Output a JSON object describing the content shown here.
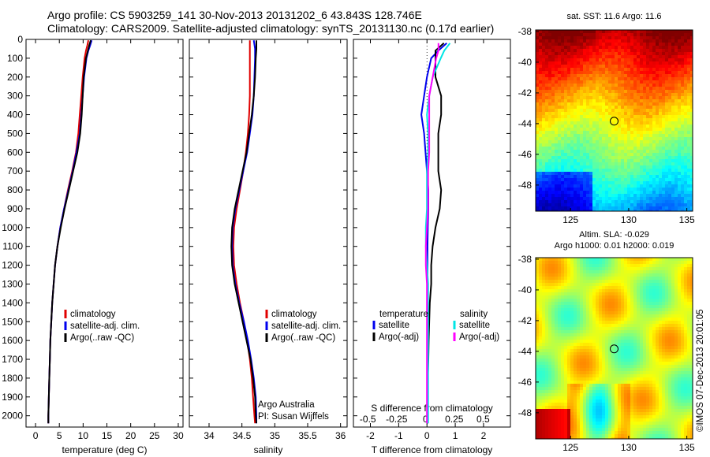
{
  "titles": {
    "line1": "Argo profile: CS 5903259_141 30-Nov-2013 20131202_6 43.843S 128.746E",
    "line2": "Climatology: CARS2009. Satellite-adjusted climatology: synTS_20131130.nc (0.17d earlier)"
  },
  "colors": {
    "climatology": "#e00000",
    "satellite": "#0000ee",
    "argo": "#000000",
    "sal_satellite": "#00e5e5",
    "sal_argo": "#ff00ff"
  },
  "chart_data": [
    {
      "type": "line",
      "id": "temperature",
      "xlabel": "temperature (deg C)",
      "ylabel": "",
      "xlim": [
        -2,
        31
      ],
      "ylim": [
        0,
        2060
      ],
      "y_inverted": true,
      "xticks": [
        "0",
        "5",
        "10",
        "15",
        "20",
        "25",
        "30"
      ],
      "yticks": [
        "0",
        "100",
        "200",
        "300",
        "400",
        "500",
        "600",
        "700",
        "800",
        "900",
        "1000",
        "1100",
        "1200",
        "1300",
        "1400",
        "1500",
        "1600",
        "1700",
        "1800",
        "1900",
        "2000"
      ],
      "legend": [
        "climatology",
        "satellite-adj. clim.",
        "Argo(..raw -QC)"
      ],
      "series": [
        {
          "name": "climatology",
          "y": [
            5,
            30,
            60,
            100,
            200,
            300,
            400,
            500,
            600,
            700,
            800,
            900,
            1000,
            1100,
            1200,
            1300,
            1400,
            1500,
            1600,
            1700,
            1800,
            1900,
            2000,
            2040
          ],
          "x": [
            11.1,
            10.9,
            10.6,
            10.3,
            9.9,
            9.6,
            9.3,
            9.0,
            8.5,
            7.7,
            6.8,
            6.0,
            5.2,
            4.6,
            4.1,
            3.8,
            3.5,
            3.3,
            3.1,
            3.0,
            2.9,
            2.8,
            2.7,
            2.7
          ]
        },
        {
          "name": "satellite-adj. clim.",
          "y": [
            5,
            30,
            60,
            100,
            200,
            300,
            400,
            500,
            600,
            700,
            800,
            900,
            1000,
            1100,
            1200,
            1300,
            1400,
            1500,
            1600,
            1700,
            1800,
            1900,
            2000,
            2040
          ],
          "x": [
            11.8,
            11.5,
            11.1,
            10.7,
            10.2,
            9.9,
            9.6,
            9.3,
            8.6,
            7.8,
            6.9,
            6.0,
            5.2,
            4.6,
            4.1,
            3.8,
            3.5,
            3.3,
            3.1,
            3.0,
            2.9,
            2.8,
            2.7,
            2.7
          ]
        },
        {
          "name": "Argo(..raw -QC)",
          "y": [
            5,
            30,
            60,
            100,
            200,
            300,
            400,
            500,
            600,
            700,
            800,
            900,
            1000,
            1100,
            1200,
            1300,
            1400,
            1500,
            1600,
            1700,
            1800,
            1900,
            2000,
            2040
          ],
          "x": [
            11.6,
            11.3,
            11.0,
            10.6,
            10.1,
            9.9,
            9.7,
            9.4,
            8.8,
            7.9,
            7.0,
            6.1,
            5.3,
            4.6,
            4.1,
            3.8,
            3.5,
            3.3,
            3.1,
            3.0,
            2.9,
            2.8,
            2.7,
            2.7
          ]
        }
      ]
    },
    {
      "type": "line",
      "id": "salinity",
      "xlabel": "salinity",
      "ylabel": "",
      "xlim": [
        33.7,
        36.1
      ],
      "ylim": [
        0,
        2060
      ],
      "y_inverted": true,
      "xticks": [
        "34",
        "34.5",
        "35",
        "35.5",
        "36"
      ],
      "legend": [
        "climatology",
        "satellite-adj. clim.",
        "Argo(..raw -QC)"
      ],
      "annotations": [
        "Argo Australia",
        "PI: Susan Wijffels"
      ],
      "series": [
        {
          "name": "climatology",
          "y": [
            5,
            50,
            100,
            200,
            300,
            400,
            500,
            600,
            700,
            800,
            900,
            1000,
            1100,
            1200,
            1300,
            1400,
            1500,
            1600,
            1700,
            1800,
            1900,
            2000,
            2040
          ],
          "x": [
            34.62,
            34.62,
            34.62,
            34.62,
            34.62,
            34.61,
            34.59,
            34.56,
            34.52,
            34.47,
            34.42,
            34.38,
            34.37,
            34.38,
            34.42,
            34.47,
            34.53,
            34.58,
            34.62,
            34.65,
            34.67,
            34.69,
            34.7
          ]
        },
        {
          "name": "satellite-adj. clim.",
          "y": [
            5,
            50,
            100,
            200,
            300,
            400,
            500,
            600,
            700,
            800,
            900,
            1000,
            1100,
            1200,
            1300,
            1400,
            1500,
            1600,
            1700,
            1800,
            1900,
            2000,
            2040
          ],
          "x": [
            34.68,
            34.7,
            34.7,
            34.69,
            34.68,
            34.66,
            34.62,
            34.58,
            34.52,
            34.46,
            34.4,
            34.36,
            34.35,
            34.36,
            34.4,
            34.46,
            34.53,
            34.59,
            34.64,
            34.68,
            34.71,
            34.72,
            34.72
          ]
        },
        {
          "name": "Argo(..raw -QC)",
          "y": [
            5,
            50,
            100,
            200,
            300,
            400,
            500,
            600,
            700,
            800,
            900,
            1000,
            1100,
            1200,
            1300,
            1400,
            1500,
            1600,
            1700,
            1800,
            1900,
            2000,
            2040
          ],
          "x": [
            34.72,
            34.72,
            34.71,
            34.7,
            34.68,
            34.65,
            34.61,
            34.57,
            34.51,
            34.45,
            34.39,
            34.35,
            34.34,
            34.35,
            34.39,
            34.45,
            34.51,
            34.57,
            34.63,
            34.67,
            34.7,
            34.71,
            34.72
          ]
        }
      ]
    },
    {
      "type": "line",
      "id": "difference",
      "xlabel": "T difference from climatology",
      "xlabel_top": "S difference from climatology",
      "ylabel": "",
      "xlim": [
        -2.6,
        2.95
      ],
      "ylim": [
        0,
        2060
      ],
      "y_inverted": true,
      "xticks": [
        "-2",
        "-1",
        "0",
        "1",
        "2"
      ],
      "xticks_top": [
        "-0.5",
        "-0.25",
        "0",
        "0.25",
        "0.5"
      ],
      "legend_titles": [
        "temperature",
        "salinity"
      ],
      "legend": [
        "satellite",
        "Argo(-adj)",
        "satellite",
        "Argo(-adj)"
      ],
      "series": [
        {
          "name": "temperature satellite",
          "y": [
            20,
            60,
            100,
            200,
            300,
            400,
            500,
            600,
            700,
            800,
            900,
            1000,
            1100,
            1200,
            1300,
            1400,
            1500,
            1600,
            1700,
            1800,
            1900,
            2000,
            2040
          ],
          "x": [
            0.7,
            0.4,
            0.15,
            0.0,
            -0.1,
            -0.2,
            -0.1,
            -0.05,
            0.0,
            0.05,
            0.05,
            0.03,
            0.02,
            0.02,
            0.02,
            0.02,
            0.02,
            0.01,
            0.01,
            0.01,
            0.01,
            0.01,
            0.01
          ]
        },
        {
          "name": "temperature Argo(-adj)",
          "y": [
            20,
            60,
            100,
            200,
            300,
            400,
            500,
            600,
            700,
            800,
            900,
            1000,
            1100,
            1200,
            1300,
            1400,
            1500,
            1600,
            1700,
            1800,
            1900,
            2000,
            2040
          ],
          "x": [
            0.6,
            0.3,
            0.3,
            0.3,
            0.5,
            0.5,
            0.4,
            0.4,
            0.4,
            0.5,
            0.45,
            0.3,
            0.2,
            0.15,
            0.15,
            0.1,
            0.08,
            0.06,
            0.05,
            0.03,
            0.02,
            0.02,
            0.02
          ]
        },
        {
          "name": "salinity satellite",
          "y": [
            20,
            60,
            100,
            200,
            300,
            400,
            500,
            600,
            700,
            800,
            900,
            1000,
            1100,
            1200,
            1300,
            1400,
            1500,
            1600,
            1700,
            1800,
            1900,
            2000,
            2040
          ],
          "x": [
            0.2,
            0.15,
            0.12,
            0.05,
            0.02,
            0.0,
            0.01,
            0.01,
            0.0,
            0.0,
            0.0,
            -0.01,
            -0.01,
            0.0,
            0.01,
            0.01,
            0.01,
            0.01,
            0.01,
            0.01,
            0.01,
            0.01,
            0.01
          ]
        },
        {
          "name": "salinity Argo(-adj)",
          "y": [
            20,
            60,
            100,
            200,
            300,
            400,
            500,
            600,
            700,
            800,
            900,
            1000,
            1100,
            1200,
            1300,
            1400,
            1500,
            1600,
            1700,
            1800,
            1900,
            2000,
            2040
          ],
          "x": [
            0.1,
            0.1,
            0.08,
            0.05,
            0.02,
            0.02,
            0.02,
            0.02,
            0.01,
            0.01,
            0.01,
            0.0,
            -0.01,
            -0.01,
            0.0,
            0.0,
            0.0,
            0.0,
            0.0,
            0.0,
            0.0,
            0.0,
            0.0
          ]
        }
      ]
    },
    {
      "type": "heatmap",
      "id": "sst_map",
      "title": "sat. SST: 11.6 Argo: 11.6",
      "xlim": [
        122,
        135.5
      ],
      "ylim": [
        -49.7,
        -37.9
      ],
      "xticks": [
        "125",
        "130",
        "135"
      ],
      "yticks": [
        "-38",
        "-40",
        "-42",
        "-44",
        "-46",
        "-48"
      ],
      "marker": {
        "lon": 128.75,
        "lat": -43.84
      }
    },
    {
      "type": "heatmap",
      "id": "sla_map",
      "title_line1": "Altim. SLA: -0.029",
      "title_line2": "Argo h1000: 0.01 h2000: 0.019",
      "xlim": [
        122,
        135.5
      ],
      "ylim": [
        -49.7,
        -37.9
      ],
      "xticks": [
        "125",
        "130",
        "135"
      ],
      "yticks": [
        "-38",
        "-40",
        "-42",
        "-44",
        "-46",
        "-48"
      ],
      "marker": {
        "lon": 128.75,
        "lat": -43.84
      }
    }
  ],
  "footer": "©IMOS 07-Dec-2013 20:01:05"
}
